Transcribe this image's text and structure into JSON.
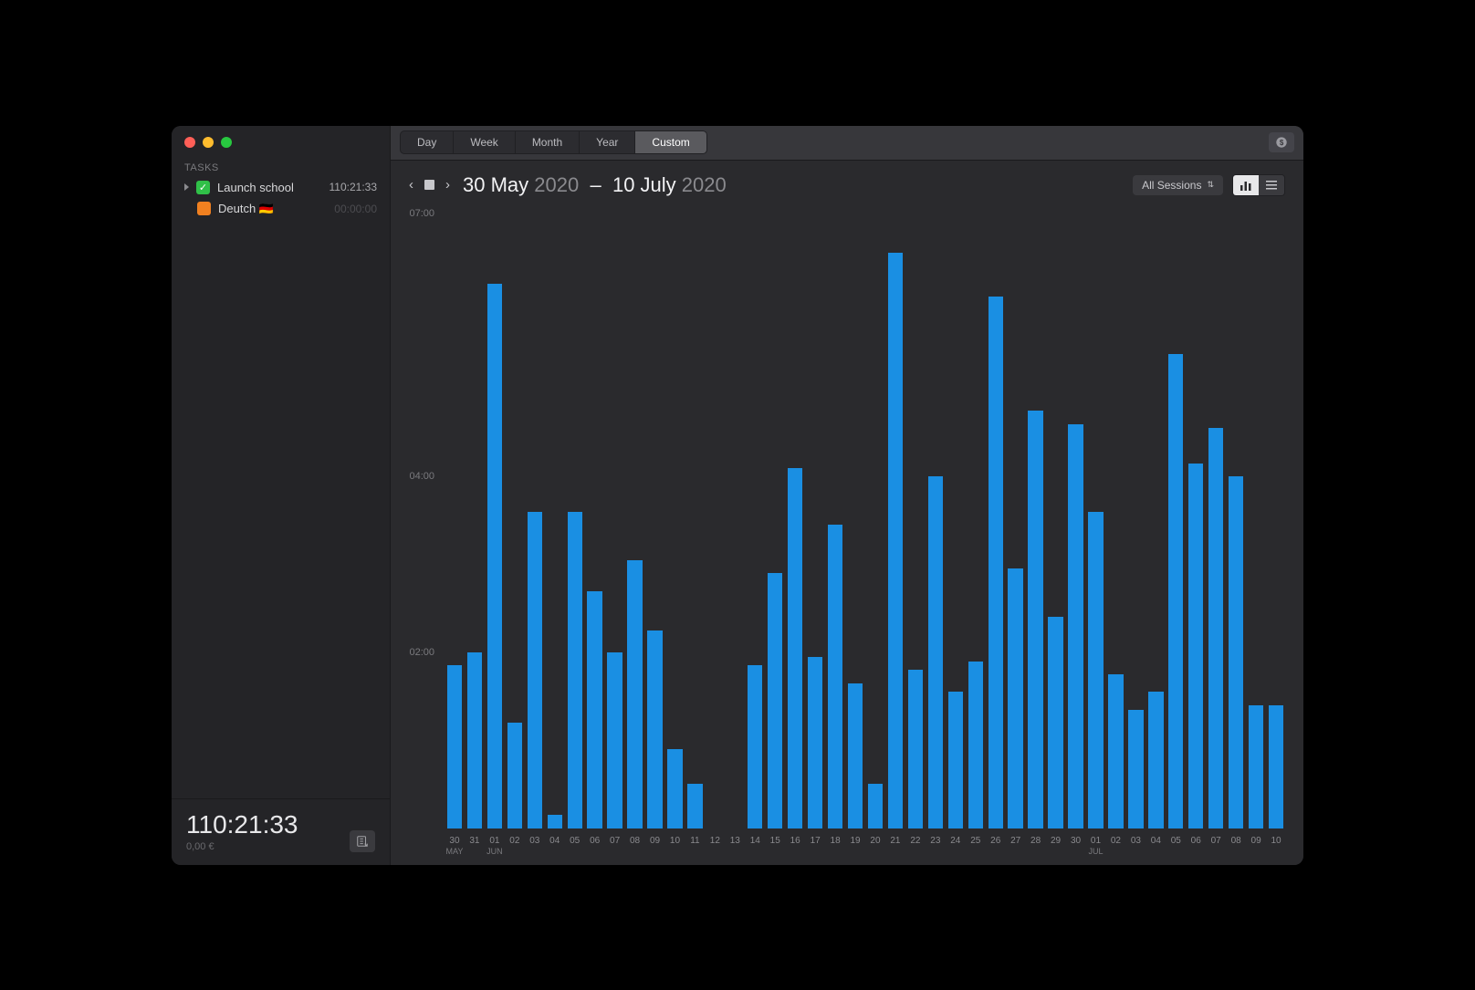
{
  "sidebar": {
    "tasksHeader": "TASKS",
    "tasks": [
      {
        "label": "Launch school",
        "time": "110:21:33",
        "color": "green",
        "checked": true,
        "dim": false
      },
      {
        "label": "Deutch 🇩🇪",
        "time": "00:00:00",
        "color": "orange",
        "checked": false,
        "dim": true
      }
    ],
    "totalTime": "110:21:33",
    "totalCost": "0,00 €"
  },
  "toolbar": {
    "segments": [
      "Day",
      "Week",
      "Month",
      "Year",
      "Custom"
    ],
    "activeSegment": "Custom"
  },
  "header": {
    "range": {
      "d1": "30 May",
      "y1": "2020",
      "sep": "–",
      "d2": "10 July",
      "y2": "2020"
    },
    "sessionsLabel": "All Sessions"
  },
  "chart": {
    "type": "bar",
    "bar_color": "#1a8fe3",
    "background": "#2a2a2d",
    "ymax": 7.0,
    "yticks": [
      {
        "value": 7.0,
        "label": "07:00"
      },
      {
        "value": 4.0,
        "label": "04:00"
      },
      {
        "value": 2.0,
        "label": "02:00"
      }
    ],
    "x": [
      {
        "day": "30",
        "month": "MAY",
        "value": 1.85
      },
      {
        "day": "31",
        "month": "",
        "value": 2.0
      },
      {
        "day": "01",
        "month": "JUN",
        "value": 6.2
      },
      {
        "day": "02",
        "month": "",
        "value": 1.2
      },
      {
        "day": "03",
        "month": "",
        "value": 3.6
      },
      {
        "day": "04",
        "month": "",
        "value": 0.15
      },
      {
        "day": "05",
        "month": "",
        "value": 3.6
      },
      {
        "day": "06",
        "month": "",
        "value": 2.7
      },
      {
        "day": "07",
        "month": "",
        "value": 2.0
      },
      {
        "day": "08",
        "month": "",
        "value": 3.05
      },
      {
        "day": "09",
        "month": "",
        "value": 2.25
      },
      {
        "day": "10",
        "month": "",
        "value": 0.9
      },
      {
        "day": "11",
        "month": "",
        "value": 0.5
      },
      {
        "day": "12",
        "month": "",
        "value": 0
      },
      {
        "day": "13",
        "month": "",
        "value": 0
      },
      {
        "day": "14",
        "month": "",
        "value": 1.85
      },
      {
        "day": "15",
        "month": "",
        "value": 2.9
      },
      {
        "day": "16",
        "month": "",
        "value": 4.1
      },
      {
        "day": "17",
        "month": "",
        "value": 1.95
      },
      {
        "day": "18",
        "month": "",
        "value": 3.45
      },
      {
        "day": "19",
        "month": "",
        "value": 1.65
      },
      {
        "day": "20",
        "month": "",
        "value": 0.5
      },
      {
        "day": "21",
        "month": "",
        "value": 6.55
      },
      {
        "day": "22",
        "month": "",
        "value": 1.8
      },
      {
        "day": "23",
        "month": "",
        "value": 4.0
      },
      {
        "day": "24",
        "month": "",
        "value": 1.55
      },
      {
        "day": "25",
        "month": "",
        "value": 1.9
      },
      {
        "day": "26",
        "month": "",
        "value": 6.05
      },
      {
        "day": "27",
        "month": "",
        "value": 2.95
      },
      {
        "day": "28",
        "month": "",
        "value": 4.75
      },
      {
        "day": "29",
        "month": "",
        "value": 2.4
      },
      {
        "day": "30",
        "month": "",
        "value": 4.6
      },
      {
        "day": "01",
        "month": "JUL",
        "value": 3.6
      },
      {
        "day": "02",
        "month": "",
        "value": 1.75
      },
      {
        "day": "03",
        "month": "",
        "value": 1.35
      },
      {
        "day": "04",
        "month": "",
        "value": 1.55
      },
      {
        "day": "05",
        "month": "",
        "value": 5.4
      },
      {
        "day": "06",
        "month": "",
        "value": 4.15
      },
      {
        "day": "07",
        "month": "",
        "value": 4.55
      },
      {
        "day": "08",
        "month": "",
        "value": 4.0
      },
      {
        "day": "09",
        "month": "",
        "value": 1.4
      },
      {
        "day": "10",
        "month": "",
        "value": 1.4
      }
    ]
  }
}
